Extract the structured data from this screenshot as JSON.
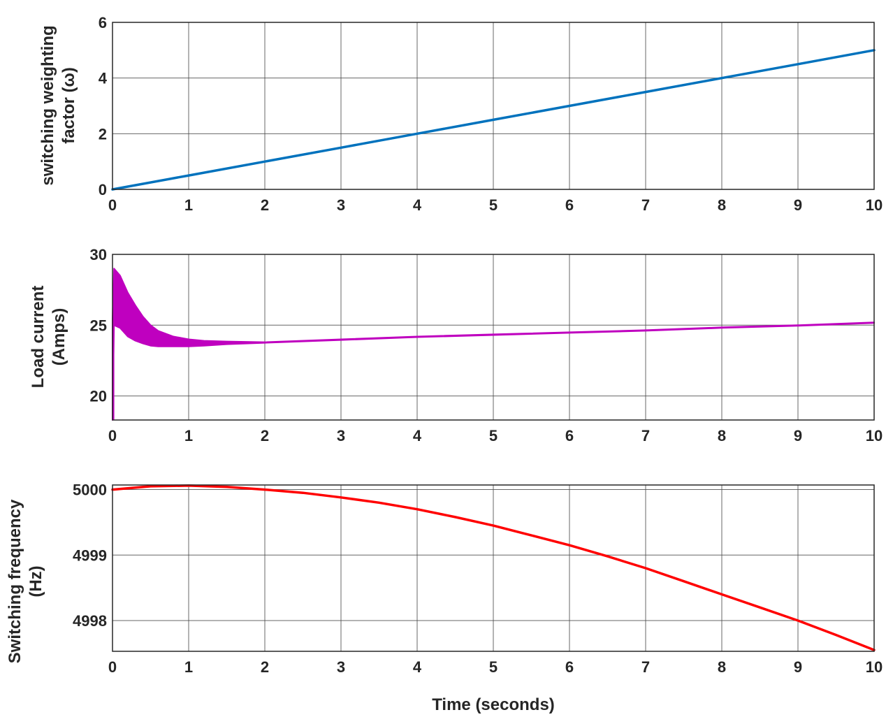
{
  "figure": {
    "xlabel": "Time (seconds)",
    "x_ticks": [
      "0",
      "1",
      "2",
      "3",
      "4",
      "5",
      "6",
      "7",
      "8",
      "9",
      "10"
    ]
  },
  "chart_data": [
    {
      "type": "line",
      "panel": 1,
      "title": "",
      "xlabel": "",
      "ylabel_line1": "switching weighting",
      "ylabel_line2": "factor (ω)",
      "xlim": [
        0,
        10
      ],
      "ylim": [
        0,
        6
      ],
      "y_ticks": [
        "0",
        "2",
        "4",
        "6"
      ],
      "grid": true,
      "color": "#0072BD",
      "series": [
        {
          "name": "switching weighting factor",
          "x": [
            0,
            1,
            2,
            3,
            4,
            5,
            6,
            7,
            8,
            9,
            10
          ],
          "values": [
            0,
            0.5,
            1.0,
            1.5,
            2.0,
            2.5,
            3.0,
            3.5,
            4.0,
            4.5,
            5.0
          ]
        }
      ]
    },
    {
      "type": "line",
      "panel": 2,
      "title": "",
      "xlabel": "",
      "ylabel_line1": "Load current",
      "ylabel_line2": "(Amps)",
      "xlim": [
        0,
        10
      ],
      "ylim": [
        18.3,
        30
      ],
      "y_ticks": [
        "20",
        "25",
        "30"
      ],
      "grid": true,
      "color": "#BF00BF",
      "series": [
        {
          "name": "load current upper envelope",
          "x": [
            0,
            0.02,
            0.1,
            0.2,
            0.3,
            0.4,
            0.5,
            0.6,
            0.8,
            1.0,
            1.2,
            1.5,
            2,
            3,
            4,
            5,
            6,
            7,
            8,
            9,
            10
          ],
          "values": [
            25.5,
            29.0,
            28.5,
            27.3,
            26.4,
            25.6,
            25.0,
            24.6,
            24.2,
            24.0,
            23.9,
            23.85,
            23.8,
            24.0,
            24.2,
            24.35,
            24.5,
            24.65,
            24.85,
            25.0,
            25.2
          ]
        },
        {
          "name": "load current lower envelope",
          "x": [
            0,
            0.02,
            0.1,
            0.2,
            0.3,
            0.4,
            0.5,
            0.6,
            0.8,
            1.0,
            1.2,
            1.5,
            2,
            3,
            4,
            5,
            6,
            7,
            8,
            9,
            10
          ],
          "values": [
            18.3,
            25.0,
            24.8,
            24.2,
            23.9,
            23.7,
            23.55,
            23.5,
            23.5,
            23.5,
            23.55,
            23.65,
            23.75,
            23.95,
            24.15,
            24.3,
            24.45,
            24.6,
            24.8,
            24.95,
            25.15
          ]
        }
      ]
    },
    {
      "type": "line",
      "panel": 3,
      "title": "",
      "xlabel": "Time (seconds)",
      "ylabel_line1": "Switching frequency",
      "ylabel_line2": "(Hz)",
      "xlim": [
        0,
        10
      ],
      "ylim": [
        4997.53,
        5000.07
      ],
      "y_ticks": [
        "4998",
        "4999",
        "5000"
      ],
      "grid": true,
      "color": "#FF0000",
      "series": [
        {
          "name": "switching frequency",
          "x": [
            0,
            0.5,
            1,
            1.5,
            2,
            2.5,
            3,
            3.5,
            4,
            4.5,
            5,
            5.5,
            6,
            6.5,
            7,
            7.5,
            8,
            8.5,
            9,
            9.5,
            10
          ],
          "values": [
            5000.0,
            5000.05,
            5000.06,
            5000.04,
            5000.0,
            4999.95,
            4999.88,
            4999.8,
            4999.7,
            4999.58,
            4999.45,
            4999.3,
            4999.15,
            4998.98,
            4998.8,
            4998.6,
            4998.4,
            4998.2,
            4998.0,
            4997.78,
            4997.55
          ]
        }
      ]
    }
  ]
}
